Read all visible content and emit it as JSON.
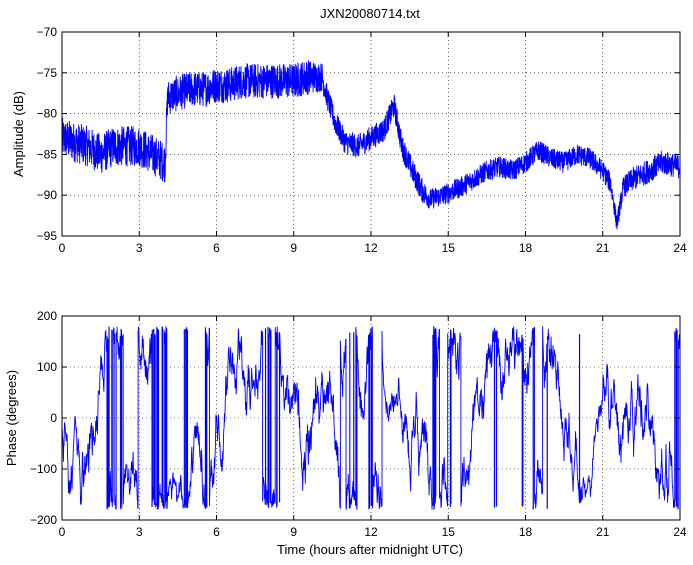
{
  "chart_data": [
    {
      "type": "line",
      "title": "JXN20080714.txt",
      "xlabel": "",
      "ylabel": "Amplitude (dB)",
      "xlim": [
        0,
        24
      ],
      "ylim": [
        -95,
        -70
      ],
      "xticks": [
        0,
        3,
        6,
        9,
        12,
        15,
        18,
        21,
        24
      ],
      "yticks": [
        -95,
        -90,
        -85,
        -80,
        -75,
        -70
      ],
      "xtick_labels": [
        "0",
        "3",
        "6",
        "9",
        "12",
        "15",
        "18",
        "21",
        "24"
      ],
      "ytick_labels": [
        "−95",
        "−90",
        "−85",
        "−80",
        "−75",
        "−70"
      ],
      "grid": "dotted",
      "color": "#0000ff",
      "series": [
        {
          "x": [
            0,
            0.5,
            1.0,
            1.5,
            2.0,
            2.5,
            3.0,
            3.5,
            4.0,
            4.1,
            4.5,
            5.0,
            5.5,
            6.0,
            6.5,
            7.0,
            7.5,
            8.0,
            8.5,
            9.0,
            9.5,
            10.1,
            10.3,
            10.6,
            11.0,
            11.5,
            12.0,
            12.5,
            12.9,
            13.2,
            13.6,
            14.0,
            14.3,
            14.8,
            15.5,
            16.0,
            16.5,
            17.0,
            17.5,
            18.0,
            18.5,
            19.0,
            19.5,
            20.0,
            20.5,
            21.0,
            21.3,
            21.55,
            21.8,
            22.2,
            22.8,
            23.3,
            24.0
          ],
          "values": [
            -83,
            -83.5,
            -84,
            -85,
            -84,
            -84,
            -84,
            -85,
            -86,
            -78,
            -77.5,
            -77,
            -77,
            -76.5,
            -76.5,
            -76,
            -76,
            -76,
            -76,
            -76,
            -75.5,
            -75.5,
            -78,
            -81,
            -83.5,
            -84,
            -83,
            -82,
            -79,
            -84,
            -87,
            -89.5,
            -90.5,
            -90,
            -89,
            -88,
            -87,
            -86.5,
            -87,
            -86,
            -84.5,
            -85.5,
            -86,
            -85,
            -85.5,
            -87,
            -88.5,
            -93.5,
            -89,
            -88,
            -87,
            -86,
            -86.5
          ],
          "noise": [
            2.5,
            2.5,
            2.5,
            2.5,
            2.5,
            2.5,
            2.5,
            2.5,
            2.5,
            2.2,
            2.2,
            2.2,
            2.2,
            2.2,
            2.2,
            2.2,
            2.2,
            2.2,
            2.2,
            2.2,
            2.2,
            1.8,
            1.5,
            1.5,
            1.5,
            1.5,
            1.5,
            1.5,
            1.5,
            1.5,
            1.5,
            1.5,
            1.3,
            1.3,
            1.3,
            1.3,
            1.3,
            1.3,
            1.3,
            1.3,
            1.3,
            1.3,
            1.3,
            1.3,
            1.3,
            1.3,
            1.3,
            1.0,
            1.3,
            1.5,
            1.5,
            1.5,
            1.5
          ]
        }
      ]
    },
    {
      "type": "line",
      "title": "",
      "xlabel": "Time (hours after midnight UTC)",
      "ylabel": "Phase (degrees)",
      "xlim": [
        0,
        24
      ],
      "ylim": [
        -200,
        200
      ],
      "xticks": [
        0,
        3,
        6,
        9,
        12,
        15,
        18,
        21,
        24
      ],
      "yticks": [
        -200,
        -100,
        0,
        100,
        200
      ],
      "xtick_labels": [
        "0",
        "3",
        "6",
        "9",
        "12",
        "15",
        "18",
        "21",
        "24"
      ],
      "ytick_labels": [
        "−200",
        "−100",
        "0",
        "100",
        "200"
      ],
      "grid": "dotted",
      "color": "#0000ff",
      "series": [
        {
          "kind": "wrapped_phase",
          "range": [
            -180,
            180
          ],
          "x": [
            0,
            24
          ]
        }
      ]
    }
  ]
}
